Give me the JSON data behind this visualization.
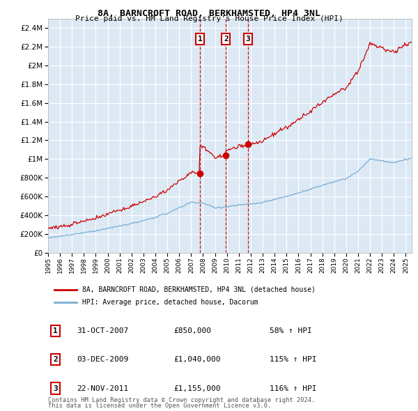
{
  "title": "8A, BARNCROFT ROAD, BERKHAMSTED, HP4 3NL",
  "subtitle": "Price paid vs. HM Land Registry's House Price Index (HPI)",
  "plot_bg_color": "#dce9f5",
  "red_line_color": "#cc0000",
  "blue_line_color": "#7aadd4",
  "grid_color": "#ffffff",
  "ylim": [
    0,
    2400000
  ],
  "yticks": [
    0,
    200000,
    400000,
    600000,
    800000,
    1000000,
    1200000,
    1400000,
    1600000,
    1800000,
    2000000,
    2200000,
    2400000
  ],
  "sale_prices": [
    850000,
    1040000,
    1155000
  ],
  "sale_labels": [
    "1",
    "2",
    "3"
  ],
  "sale_date_strs": [
    "31-OCT-2007",
    "03-DEC-2009",
    "22-NOV-2011"
  ],
  "sale_pct_hpi": [
    "58%",
    "115%",
    "116%"
  ],
  "legend_red": "8A, BARNCROFT ROAD, BERKHAMSTED, HP4 3NL (detached house)",
  "legend_blue": "HPI: Average price, detached house, Dacorum",
  "footnote1": "Contains HM Land Registry data © Crown copyright and database right 2024.",
  "footnote2": "This data is licensed under the Open Government Licence v3.0."
}
